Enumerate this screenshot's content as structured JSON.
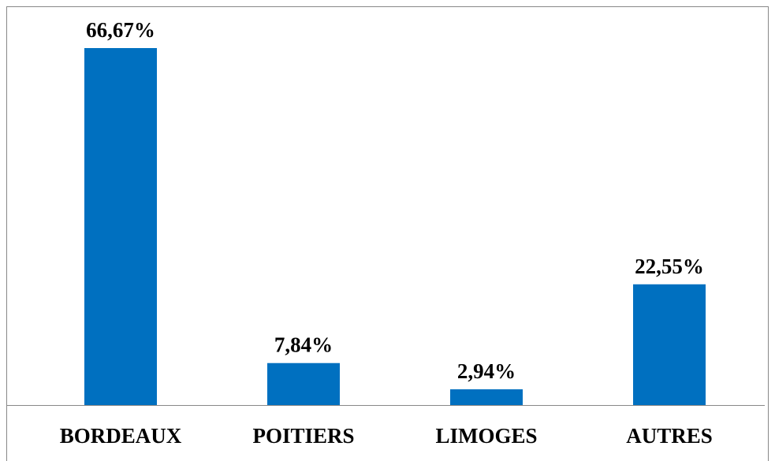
{
  "chart_data": {
    "type": "bar",
    "categories": [
      "BORDEAUX",
      "POITIERS",
      "LIMOGES",
      "AUTRES"
    ],
    "values": [
      66.67,
      7.84,
      2.94,
      22.55
    ],
    "value_labels": [
      "66,67%",
      "7,84%",
      "2,94%",
      "22,55%"
    ],
    "color": "#0070c0"
  }
}
